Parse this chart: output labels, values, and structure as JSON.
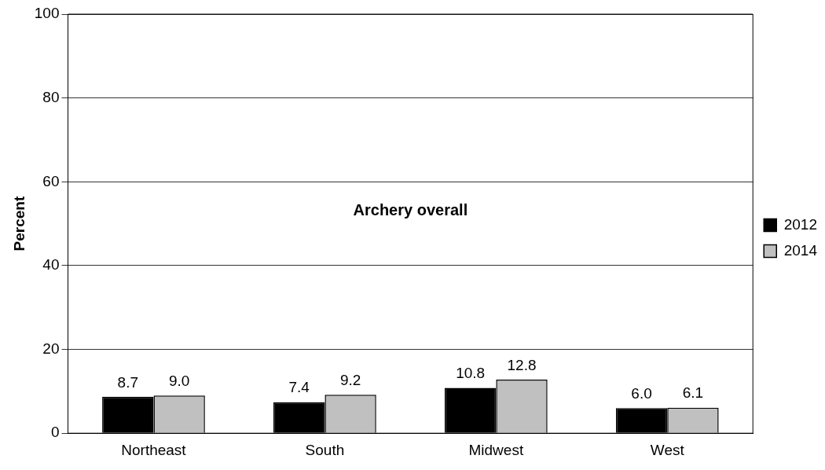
{
  "chart_data": {
    "type": "bar",
    "title": "Archery overall",
    "ylabel": "Percent",
    "categories": [
      "Northeast",
      "South",
      "Midwest",
      "West"
    ],
    "series": [
      {
        "name": "2012",
        "color": "#000000",
        "values": [
          8.7,
          7.4,
          10.8,
          6.0
        ],
        "value_labels": [
          "8.7",
          "7.4",
          "10.8",
          "6.0"
        ]
      },
      {
        "name": "2014",
        "color": "#c0c0c0",
        "values": [
          9.0,
          9.2,
          12.8,
          6.1
        ],
        "value_labels": [
          "9.0",
          "9.2",
          "12.8",
          "6.1"
        ]
      }
    ],
    "ylim": [
      0,
      100
    ],
    "yticks": [
      0,
      20,
      40,
      60,
      80,
      100
    ],
    "grid": "y",
    "legend": "right"
  }
}
